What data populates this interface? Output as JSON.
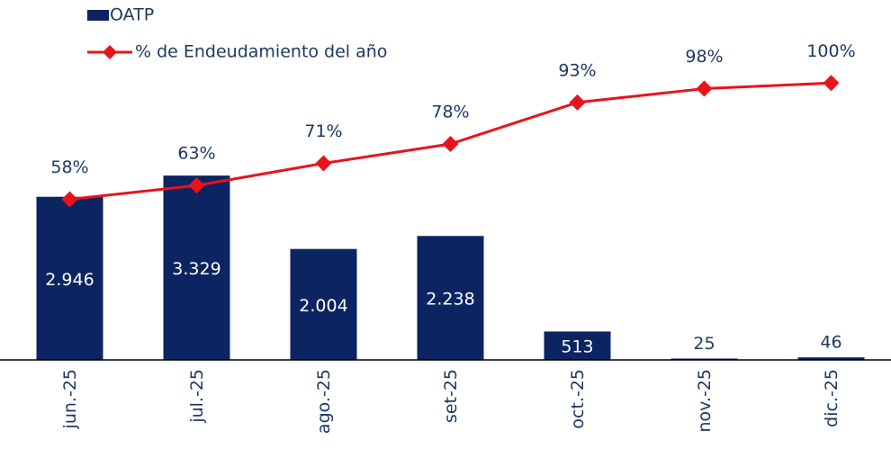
{
  "chart_data": {
    "type": "bar_line",
    "categories": [
      "jun.-25",
      "jul.-25",
      "ago.-25",
      "set-25",
      "oct.-25",
      "nov.-25",
      "dic.-25"
    ],
    "series": [
      {
        "name": "OATP",
        "type": "bar",
        "color": "#0c2461",
        "values": [
          2946,
          3329,
          2004,
          2238,
          513,
          25,
          46
        ],
        "value_labels": [
          "2.946",
          "3.329",
          "2.004",
          "2.238",
          "513",
          "25",
          "46"
        ]
      },
      {
        "name": "% de Endeudamiento del año",
        "type": "line",
        "axis": "y2",
        "color": "#e8141b",
        "values": [
          58,
          63,
          71,
          78,
          93,
          98,
          100
        ],
        "value_labels": [
          "58%",
          "63%",
          "71%",
          "78%",
          "93%",
          "98%",
          "100%"
        ]
      }
    ],
    "ylim": [
      0,
      6500
    ],
    "y2lim": [
      0,
      130
    ],
    "legend": "top-left"
  }
}
